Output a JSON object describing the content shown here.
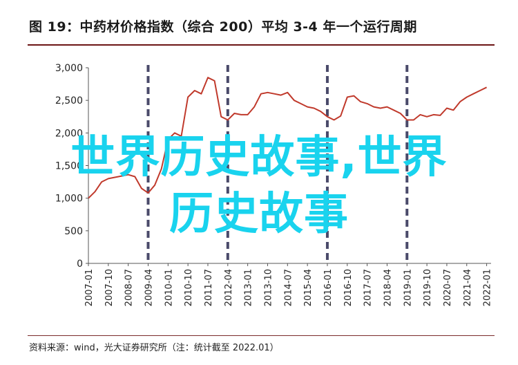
{
  "header": {
    "title": "图 19：中药材价格指数（综合 200）平均 3-4 年一个运行周期"
  },
  "footer": {
    "source": "资料来源：wind，光大证券研究所（注：统计截至 2022.01）"
  },
  "watermark": {
    "line1": "世界历史故事,世界",
    "line2": "历史故事"
  },
  "colors": {
    "line": "#c0392b",
    "cycle_marker": "#4a4a6a",
    "watermark": "#19d3ee",
    "rule": "#6b1414"
  },
  "chart_data": {
    "type": "line",
    "title": "",
    "xlabel": "",
    "ylabel": "",
    "ylim": [
      0,
      3000
    ],
    "yticks": [
      0,
      500,
      1000,
      1500,
      2000,
      2500,
      3000
    ],
    "ytick_labels": [
      "0",
      "500",
      "1,000",
      "1,500",
      "2,000",
      "2,500",
      "3,000"
    ],
    "xlim": [
      "2007-01",
      "2022-03"
    ],
    "xtick_labels": [
      "2007-01",
      "2007-10",
      "2008-07",
      "2009-04",
      "2010-01",
      "2010-10",
      "2011-07",
      "2012-04",
      "2013-01",
      "2013-10",
      "2014-07",
      "2015-04",
      "2016-01",
      "2016-10",
      "2017-07",
      "2018-04",
      "2019-01",
      "2019-10",
      "2020-07",
      "2021-04",
      "2022-01"
    ],
    "cycle_markers": [
      "2009-04",
      "2012-04",
      "2016-01",
      "2019-01"
    ],
    "series": [
      {
        "x": [
          "2007-01",
          "2007-04",
          "2007-07",
          "2007-10",
          "2008-01",
          "2008-04",
          "2008-07",
          "2008-10",
          "2009-01",
          "2009-04",
          "2009-07",
          "2009-10",
          "2010-01",
          "2010-04",
          "2010-07",
          "2010-10",
          "2011-01",
          "2011-04",
          "2011-07",
          "2011-10",
          "2012-01",
          "2012-04",
          "2012-07",
          "2012-10",
          "2013-01",
          "2013-04",
          "2013-07",
          "2013-10",
          "2014-01",
          "2014-04",
          "2014-07",
          "2014-10",
          "2015-01",
          "2015-04",
          "2015-07",
          "2015-10",
          "2016-01",
          "2016-04",
          "2016-07",
          "2016-10",
          "2017-01",
          "2017-04",
          "2017-07",
          "2017-10",
          "2018-01",
          "2018-04",
          "2018-07",
          "2018-10",
          "2019-01",
          "2019-04",
          "2019-07",
          "2019-10",
          "2020-01",
          "2020-04",
          "2020-07",
          "2020-10",
          "2021-01",
          "2021-04",
          "2021-07",
          "2021-10",
          "2022-01"
        ],
        "values": [
          1000,
          1100,
          1250,
          1300,
          1320,
          1340,
          1360,
          1330,
          1150,
          1080,
          1200,
          1450,
          1900,
          2000,
          1950,
          2550,
          2650,
          2600,
          2850,
          2800,
          2250,
          2200,
          2300,
          2280,
          2280,
          2400,
          2600,
          2620,
          2600,
          2580,
          2620,
          2500,
          2450,
          2400,
          2380,
          2330,
          2250,
          2200,
          2260,
          2550,
          2570,
          2480,
          2450,
          2400,
          2380,
          2400,
          2350,
          2300,
          2200,
          2200,
          2280,
          2250,
          2280,
          2270,
          2380,
          2350,
          2480,
          2550,
          2600,
          2650,
          2700
        ]
      }
    ]
  }
}
